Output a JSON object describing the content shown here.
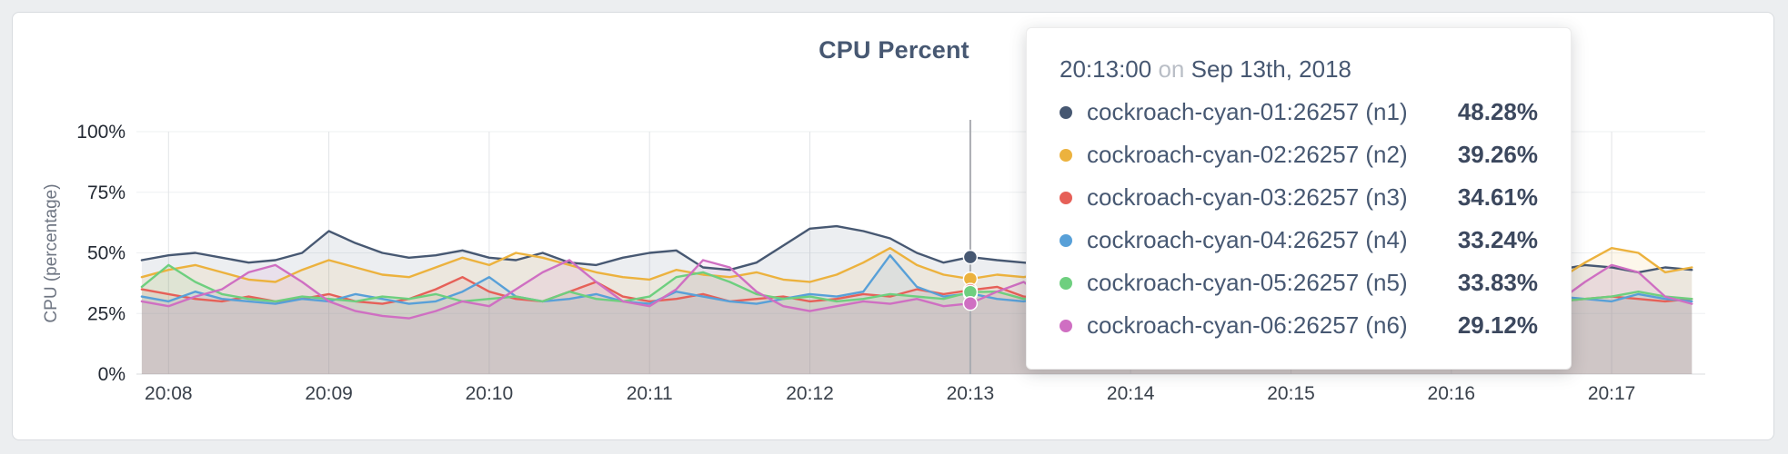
{
  "chart_data": {
    "type": "line",
    "title": "CPU Percent",
    "ylabel": "CPU (percentage)",
    "ylim": [
      0,
      100
    ],
    "grid": "vertical-and-faint-horizontal",
    "legend_position": "tooltip",
    "y_ticks": [
      "0%",
      "25%",
      "50%",
      "75%",
      "100%"
    ],
    "y_tick_values": [
      0,
      25,
      50,
      75,
      100
    ],
    "x_tick_labels": [
      "20:08",
      "20:09",
      "20:10",
      "20:11",
      "20:12",
      "20:13",
      "20:14",
      "20:15",
      "20:16",
      "20:17"
    ],
    "x_tick_seconds": [
      0,
      60,
      120,
      180,
      240,
      300,
      360,
      420,
      480,
      540
    ],
    "x_domain_seconds": [
      -12,
      575
    ],
    "sample_start_sec": -10,
    "sample_step_sec": 10,
    "hover": {
      "time_label": "20:13:00",
      "time_sec": 300,
      "line_color": "#a9acb1"
    },
    "series": [
      {
        "name": "cockroach-cyan-01:26257 (n1)",
        "color": "#475872",
        "values": [
          47,
          49,
          50,
          48,
          46,
          47,
          50,
          59,
          54,
          50,
          48,
          49,
          51,
          48,
          47,
          50,
          46,
          45,
          48,
          50,
          51,
          44,
          43,
          46,
          53,
          60,
          61,
          59,
          56,
          50,
          46,
          48.28,
          47,
          46,
          45,
          46,
          44,
          45,
          46,
          44,
          45,
          43,
          44,
          46,
          45,
          44,
          46,
          45,
          43,
          44,
          45,
          46,
          44,
          43,
          45,
          44,
          42,
          44,
          43
        ]
      },
      {
        "name": "cockroach-cyan-02:26257 (n2)",
        "color": "#ecb23e",
        "values": [
          40,
          43,
          45,
          42,
          39,
          38,
          43,
          47,
          44,
          41,
          40,
          44,
          48,
          45,
          50,
          48,
          45,
          42,
          40,
          39,
          43,
          41,
          40,
          42,
          39,
          38,
          41,
          46,
          52,
          45,
          41,
          39.26,
          41,
          40,
          42,
          39,
          38,
          40,
          39,
          41,
          38,
          39,
          40,
          38,
          39,
          41,
          40,
          39,
          38,
          40,
          39,
          41,
          40,
          39,
          46,
          52,
          50,
          42,
          44
        ]
      },
      {
        "name": "cockroach-cyan-03:26257 (n3)",
        "color": "#e66058",
        "values": [
          35,
          33,
          31,
          30,
          32,
          30,
          31,
          33,
          30,
          29,
          31,
          35,
          40,
          34,
          31,
          30,
          34,
          38,
          32,
          30,
          31,
          33,
          30,
          31,
          32,
          30,
          31,
          33,
          32,
          35,
          33,
          34.61,
          36,
          32,
          31,
          30,
          31,
          32,
          30,
          31,
          30,
          32,
          31,
          30,
          31,
          30,
          32,
          31,
          30,
          31,
          30,
          32,
          31,
          30,
          31,
          32,
          31,
          30,
          31
        ]
      },
      {
        "name": "cockroach-cyan-04:26257 (n4)",
        "color": "#58a0d8",
        "values": [
          32,
          30,
          34,
          31,
          30,
          29,
          31,
          30,
          33,
          31,
          29,
          30,
          34,
          40,
          32,
          30,
          31,
          33,
          30,
          29,
          34,
          32,
          30,
          29,
          31,
          33,
          32,
          34,
          49,
          36,
          32,
          33.24,
          31,
          30,
          32,
          31,
          30,
          29,
          31,
          30,
          32,
          30,
          31,
          29,
          30,
          31,
          30,
          32,
          31,
          30,
          29,
          31,
          30,
          32,
          31,
          30,
          33,
          31,
          30
        ]
      },
      {
        "name": "cockroach-cyan-05:26257 (n5)",
        "color": "#6ecf7f",
        "values": [
          36,
          45,
          38,
          33,
          31,
          30,
          32,
          31,
          30,
          32,
          31,
          33,
          30,
          31,
          32,
          30,
          34,
          31,
          30,
          32,
          40,
          42,
          38,
          33,
          31,
          32,
          30,
          31,
          33,
          32,
          31,
          33.83,
          34,
          31,
          32,
          30,
          31,
          33,
          31,
          30,
          32,
          31,
          30,
          31,
          32,
          30,
          31,
          30,
          32,
          31,
          30,
          31,
          32,
          30,
          31,
          32,
          34,
          32,
          31
        ]
      },
      {
        "name": "cockroach-cyan-06:26257 (n6)",
        "color": "#cf6fc2",
        "values": [
          30,
          28,
          32,
          35,
          42,
          45,
          38,
          30,
          26,
          24,
          23,
          26,
          30,
          28,
          35,
          42,
          47,
          38,
          30,
          28,
          35,
          47,
          44,
          34,
          28,
          26,
          28,
          30,
          29,
          31,
          28,
          29.12,
          34,
          38,
          30,
          28,
          27,
          29,
          28,
          30,
          28,
          27,
          29,
          28,
          30,
          29,
          28,
          30,
          29,
          28,
          30,
          29,
          28,
          30,
          38,
          45,
          42,
          32,
          29
        ]
      }
    ]
  },
  "tooltip": {
    "time": "20:13:00",
    "separator": "on",
    "date": "Sep 13th, 2018",
    "rows": [
      {
        "label": "cockroach-cyan-01:26257 (n1)",
        "value": "48.28%",
        "color": "#475872"
      },
      {
        "label": "cockroach-cyan-02:26257 (n2)",
        "value": "39.26%",
        "color": "#ecb23e"
      },
      {
        "label": "cockroach-cyan-03:26257 (n3)",
        "value": "34.61%",
        "color": "#e66058"
      },
      {
        "label": "cockroach-cyan-04:26257 (n4)",
        "value": "33.24%",
        "color": "#58a0d8"
      },
      {
        "label": "cockroach-cyan-05:26257 (n5)",
        "value": "33.83%",
        "color": "#6ecf7f"
      },
      {
        "label": "cockroach-cyan-06:26257 (n6)",
        "value": "29.12%",
        "color": "#cf6fc2"
      }
    ]
  },
  "colors": {
    "page_bg": "#eceef0",
    "card_bg": "#ffffff",
    "card_border": "#d8dbdf",
    "title_text": "#475872",
    "axis_text": "#3a414b",
    "y_axis_title_text": "#6e7582",
    "gridline_vertical": "#e2e4e7",
    "gridline_horizontal": "#eef0f2"
  }
}
